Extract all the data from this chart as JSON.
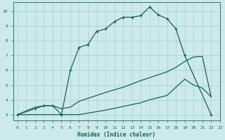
{
  "bg_color": "#cceaea",
  "grid_color": "#aad4d4",
  "line_color": "#1a5f5f",
  "xlabel": "Humidex (Indice chaleur)",
  "xlim": [
    -0.5,
    23
  ],
  "ylim": [
    2.6,
    10.6
  ],
  "yticks": [
    3,
    4,
    5,
    6,
    7,
    8,
    9,
    10
  ],
  "xticks": [
    0,
    1,
    2,
    3,
    4,
    5,
    6,
    7,
    8,
    9,
    10,
    11,
    12,
    13,
    14,
    15,
    16,
    17,
    18,
    19,
    20,
    21,
    22,
    23
  ],
  "line1_x": [
    0,
    2,
    3,
    4,
    5,
    6,
    7,
    8,
    9,
    10,
    11,
    12,
    13,
    14,
    15,
    16,
    17,
    18,
    19,
    22
  ],
  "line1_y": [
    3.0,
    3.4,
    3.6,
    3.6,
    3.0,
    6.0,
    7.55,
    7.75,
    8.65,
    8.8,
    9.3,
    9.6,
    9.6,
    9.7,
    10.3,
    9.75,
    9.5,
    8.8,
    7.0,
    3.0
  ],
  "line2_x": [
    0,
    2,
    3,
    4,
    5,
    6,
    7,
    10,
    12,
    14,
    15,
    16,
    17,
    18,
    19,
    20,
    21,
    22
  ],
  "line2_y": [
    3.0,
    3.5,
    3.6,
    3.6,
    3.4,
    3.5,
    3.9,
    4.5,
    4.85,
    5.3,
    5.5,
    5.7,
    5.9,
    6.2,
    6.6,
    6.9,
    6.95,
    4.2
  ],
  "line3_x": [
    0,
    3,
    5,
    6,
    7,
    10,
    14,
    15,
    17,
    19,
    20,
    21,
    22
  ],
  "line3_y": [
    3.0,
    3.0,
    3.0,
    3.0,
    3.0,
    3.3,
    3.8,
    4.0,
    4.3,
    5.4,
    5.0,
    4.8,
    4.2
  ]
}
